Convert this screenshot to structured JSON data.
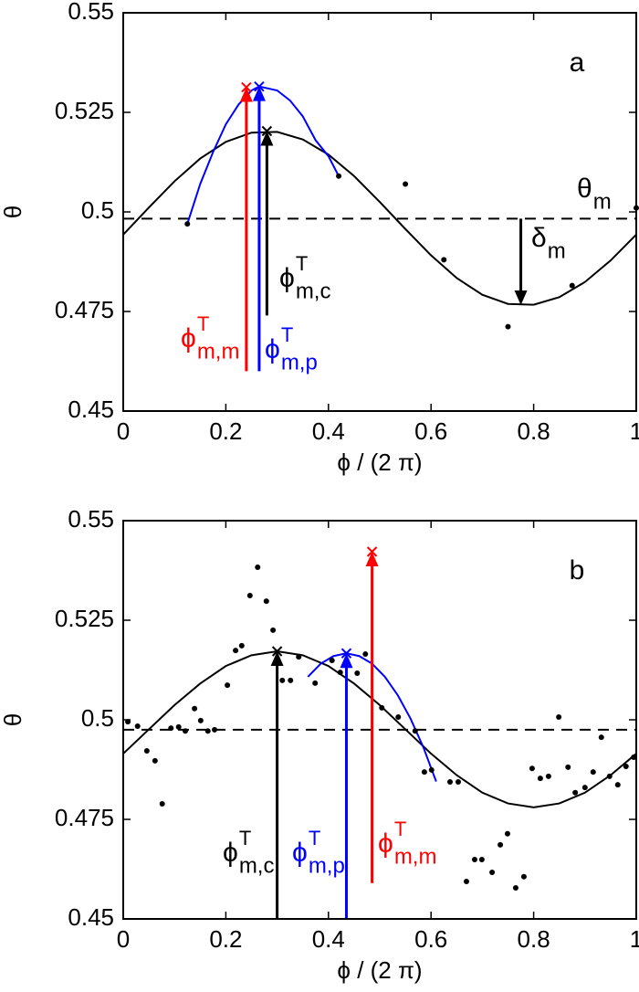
{
  "chart_data": [
    {
      "type": "line",
      "label": "a",
      "xlabel": "ϕ / (2 π)",
      "ylabel": "θ",
      "xlim": [
        0,
        1
      ],
      "ylim": [
        0.45,
        0.55
      ],
      "xticks": [
        0,
        0.2,
        0.4,
        0.6,
        0.8,
        1
      ],
      "yticks": [
        0.45,
        0.475,
        0.5,
        0.525,
        0.55
      ],
      "series": [
        {
          "color": "#000000",
          "style": "solid",
          "x": [
            0,
            0.05,
            0.1,
            0.15,
            0.2,
            0.25,
            0.3,
            0.35,
            0.4,
            0.45,
            0.5,
            0.55,
            0.6,
            0.65,
            0.7,
            0.75,
            0.8,
            0.85,
            0.9,
            0.95,
            1
          ],
          "values": [
            0.4943,
            0.5011,
            0.5077,
            0.5134,
            0.5176,
            0.5199,
            0.5201,
            0.5182,
            0.5144,
            0.509,
            0.5025,
            0.4957,
            0.4891,
            0.4834,
            0.4792,
            0.4769,
            0.4767,
            0.4786,
            0.4824,
            0.4878,
            0.4943
          ]
        },
        {
          "color": "#000000",
          "style": "dashed",
          "x": [
            0,
            1
          ],
          "values": [
            0.4983,
            0.4983
          ]
        },
        {
          "color": "#0000ff",
          "style": "solid",
          "x": [
            0.125,
            0.15,
            0.175,
            0.2,
            0.225,
            0.25,
            0.265,
            0.3,
            0.325,
            0.35,
            0.375,
            0.4,
            0.42
          ],
          "values": [
            0.497,
            0.507,
            0.515,
            0.522,
            0.527,
            0.5305,
            0.5315,
            0.5305,
            0.528,
            0.524,
            0.518,
            0.514,
            0.509
          ]
        },
        {
          "color": "#000000",
          "style": "dots",
          "x": [
            0.125,
            0.42,
            0.55,
            0.625,
            0.75,
            0.875,
            1.0
          ],
          "values": [
            0.497,
            0.509,
            0.507,
            0.488,
            0.4712,
            0.4815,
            0.501
          ]
        }
      ],
      "arrows": [
        {
          "x": 0.24,
          "from": 0.46,
          "to": 0.5313,
          "color": "#ff0000",
          "cross": true
        },
        {
          "x": 0.265,
          "from": 0.46,
          "to": 0.5315,
          "color": "#0000ff",
          "cross": true
        },
        {
          "x": 0.28,
          "from": 0.474,
          "to": 0.5203,
          "color": "#000000",
          "cross": true
        },
        {
          "x": 0.775,
          "from": 0.4983,
          "to": 0.4766,
          "color": "#000000",
          "cross": false
        }
      ],
      "annotations": [
        {
          "base": "θ",
          "sub": "m",
          "color": "#000000"
        },
        {
          "base": "δ",
          "sub": "m",
          "color": "#000000"
        },
        {
          "base": "ϕ",
          "sup": "T",
          "sub": "m,c",
          "color": "#000000"
        },
        {
          "base": "ϕ",
          "sup": "T",
          "sub": "m,m",
          "color": "#ff0000"
        },
        {
          "base": "ϕ",
          "sup": "T",
          "sub": "m,p",
          "color": "#0000ff"
        }
      ]
    },
    {
      "type": "line",
      "label": "b",
      "xlabel": "ϕ / (2 π)",
      "ylabel": "θ",
      "xlim": [
        0,
        1
      ],
      "ylim": [
        0.45,
        0.55
      ],
      "xticks": [
        0,
        0.2,
        0.4,
        0.6,
        0.8,
        1
      ],
      "yticks": [
        0.45,
        0.475,
        0.5,
        0.525,
        0.55
      ],
      "series": [
        {
          "color": "#000000",
          "style": "solid",
          "x": [
            0,
            0.05,
            0.1,
            0.15,
            0.2,
            0.25,
            0.3,
            0.35,
            0.4,
            0.45,
            0.5,
            0.55,
            0.6,
            0.65,
            0.7,
            0.75,
            0.8,
            0.85,
            0.9,
            0.95,
            1
          ],
          "values": [
            0.4915,
            0.4976,
            0.5037,
            0.5091,
            0.5135,
            0.5162,
            0.5172,
            0.5162,
            0.5135,
            0.5091,
            0.5037,
            0.4976,
            0.4915,
            0.4861,
            0.4817,
            0.479,
            0.478,
            0.479,
            0.4817,
            0.4861,
            0.4915
          ]
        },
        {
          "color": "#000000",
          "style": "dashed",
          "x": [
            0,
            1
          ],
          "values": [
            0.4975,
            0.4975
          ]
        },
        {
          "color": "#0000ff",
          "style": "solid",
          "x": [
            0.36,
            0.385,
            0.41,
            0.435,
            0.46,
            0.485,
            0.51,
            0.535,
            0.56,
            0.585,
            0.61
          ],
          "values": [
            0.5108,
            0.5141,
            0.516,
            0.5167,
            0.516,
            0.5141,
            0.5108,
            0.5062,
            0.5003,
            0.4931,
            0.4845
          ]
        },
        {
          "color": "#000000",
          "style": "dots",
          "x": [
            0.009,
            0.028,
            0.046,
            0.062,
            0.076,
            0.093,
            0.108,
            0.121,
            0.139,
            0.151,
            0.165,
            0.178,
            0.203,
            0.219,
            0.231,
            0.247,
            0.262,
            0.279,
            0.292,
            0.31,
            0.326,
            0.342,
            0.374,
            0.407,
            0.423,
            0.456,
            0.472,
            0.504,
            0.536,
            0.569,
            0.587,
            0.601,
            0.637,
            0.653,
            0.669,
            0.685,
            0.699,
            0.719,
            0.735,
            0.749,
            0.765,
            0.781,
            0.797,
            0.813,
            0.829,
            0.849,
            0.867,
            0.881,
            0.9,
            0.916,
            0.932,
            0.948,
            0.964,
            0.98,
            0.995
          ],
          "values": [
            0.4995,
            0.4984,
            0.4922,
            0.4897,
            0.4789,
            0.4979,
            0.4982,
            0.4972,
            0.5028,
            0.4998,
            0.4972,
            0.4975,
            0.5087,
            0.5174,
            0.5186,
            0.5312,
            0.5383,
            0.5298,
            0.5225,
            0.5099,
            0.5099,
            0.5158,
            0.5092,
            0.5149,
            0.5119,
            0.5117,
            0.5165,
            0.503,
            0.5007,
            0.4972,
            0.4869,
            0.4874,
            0.4844,
            0.4844,
            0.4594,
            0.4649,
            0.4649,
            0.4617,
            0.4686,
            0.4714,
            0.4578,
            0.4606,
            0.4878,
            0.4853,
            0.4858,
            0.5007,
            0.4881,
            0.4817,
            0.483,
            0.4869,
            0.4956,
            0.4858,
            0.4837,
            0.4883,
            0.4906
          ]
        }
      ],
      "arrows": [
        {
          "x": 0.3,
          "from": 0.45,
          "to": 0.5172,
          "color": "#000000",
          "cross": true
        },
        {
          "x": 0.435,
          "from": 0.45,
          "to": 0.5167,
          "color": "#0000ff",
          "cross": true
        },
        {
          "x": 0.485,
          "from": 0.459,
          "to": 0.5422,
          "color": "#ff0000",
          "cross": true
        }
      ],
      "annotations": [
        {
          "base": "ϕ",
          "sup": "T",
          "sub": "m,c",
          "color": "#000000"
        },
        {
          "base": "ϕ",
          "sup": "T",
          "sub": "m,p",
          "color": "#0000ff"
        },
        {
          "base": "ϕ",
          "sup": "T",
          "sub": "m,m",
          "color": "#ff0000"
        }
      ]
    }
  ]
}
